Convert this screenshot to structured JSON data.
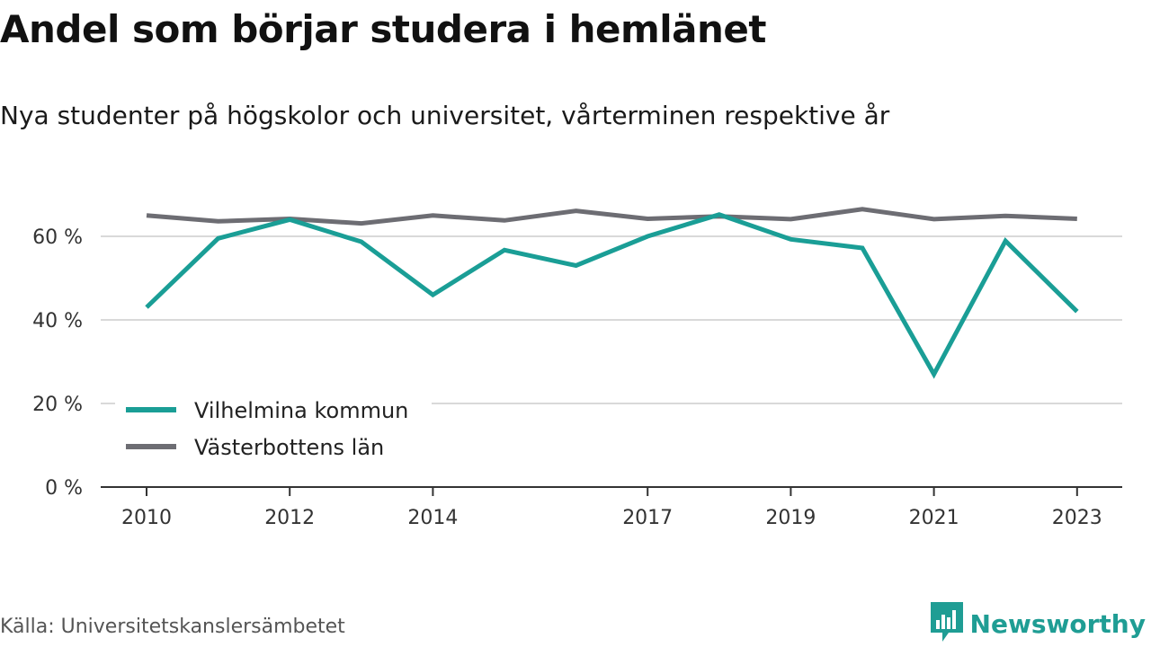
{
  "header": {
    "title": "Andel som börjar studera i hemlänet",
    "subtitle": "Nya studenter på högskolor och universitet, vårterminen respektive år"
  },
  "footer": {
    "source": "Källa: Universitetskanslersämbetet",
    "brand": "Newsworthy",
    "brand_icon": "bar-chart-speech-bubble-icon"
  },
  "colors": {
    "vilhelmina": "#1a9e96",
    "vasterbotten": "#6d6d73",
    "grid": "#d9d9d9",
    "axis": "#333333",
    "brand": "#1f9d94"
  },
  "chart_data": {
    "type": "line",
    "x": [
      2010,
      2011,
      2012,
      2013,
      2014,
      2015,
      2016,
      2017,
      2018,
      2019,
      2020,
      2021,
      2022,
      2023
    ],
    "x_tick_labels": [
      "2010",
      "2012",
      "2014",
      "2017",
      "2019",
      "2021",
      "2023"
    ],
    "y_tick_labels": [
      "0 %",
      "20 %",
      "40 %",
      "60 %"
    ],
    "y_ticks": [
      0,
      20,
      40,
      60
    ],
    "ylim": [
      0,
      70
    ],
    "grid": "horizontal",
    "legend_placement": "bottom-left",
    "series": [
      {
        "name": "Vilhelmina kommun",
        "color": "#1a9e96",
        "values": [
          43,
          59.5,
          64,
          58.7,
          46,
          56.7,
          53,
          60,
          65.2,
          59.3,
          57.2,
          27,
          58.9,
          42
        ]
      },
      {
        "name": "Västerbottens län",
        "color": "#6d6d73",
        "values": [
          65,
          63.6,
          64.2,
          63.1,
          65,
          63.8,
          66.1,
          64.2,
          64.8,
          64.1,
          66.5,
          64.1,
          64.9,
          64.2
        ]
      }
    ]
  }
}
